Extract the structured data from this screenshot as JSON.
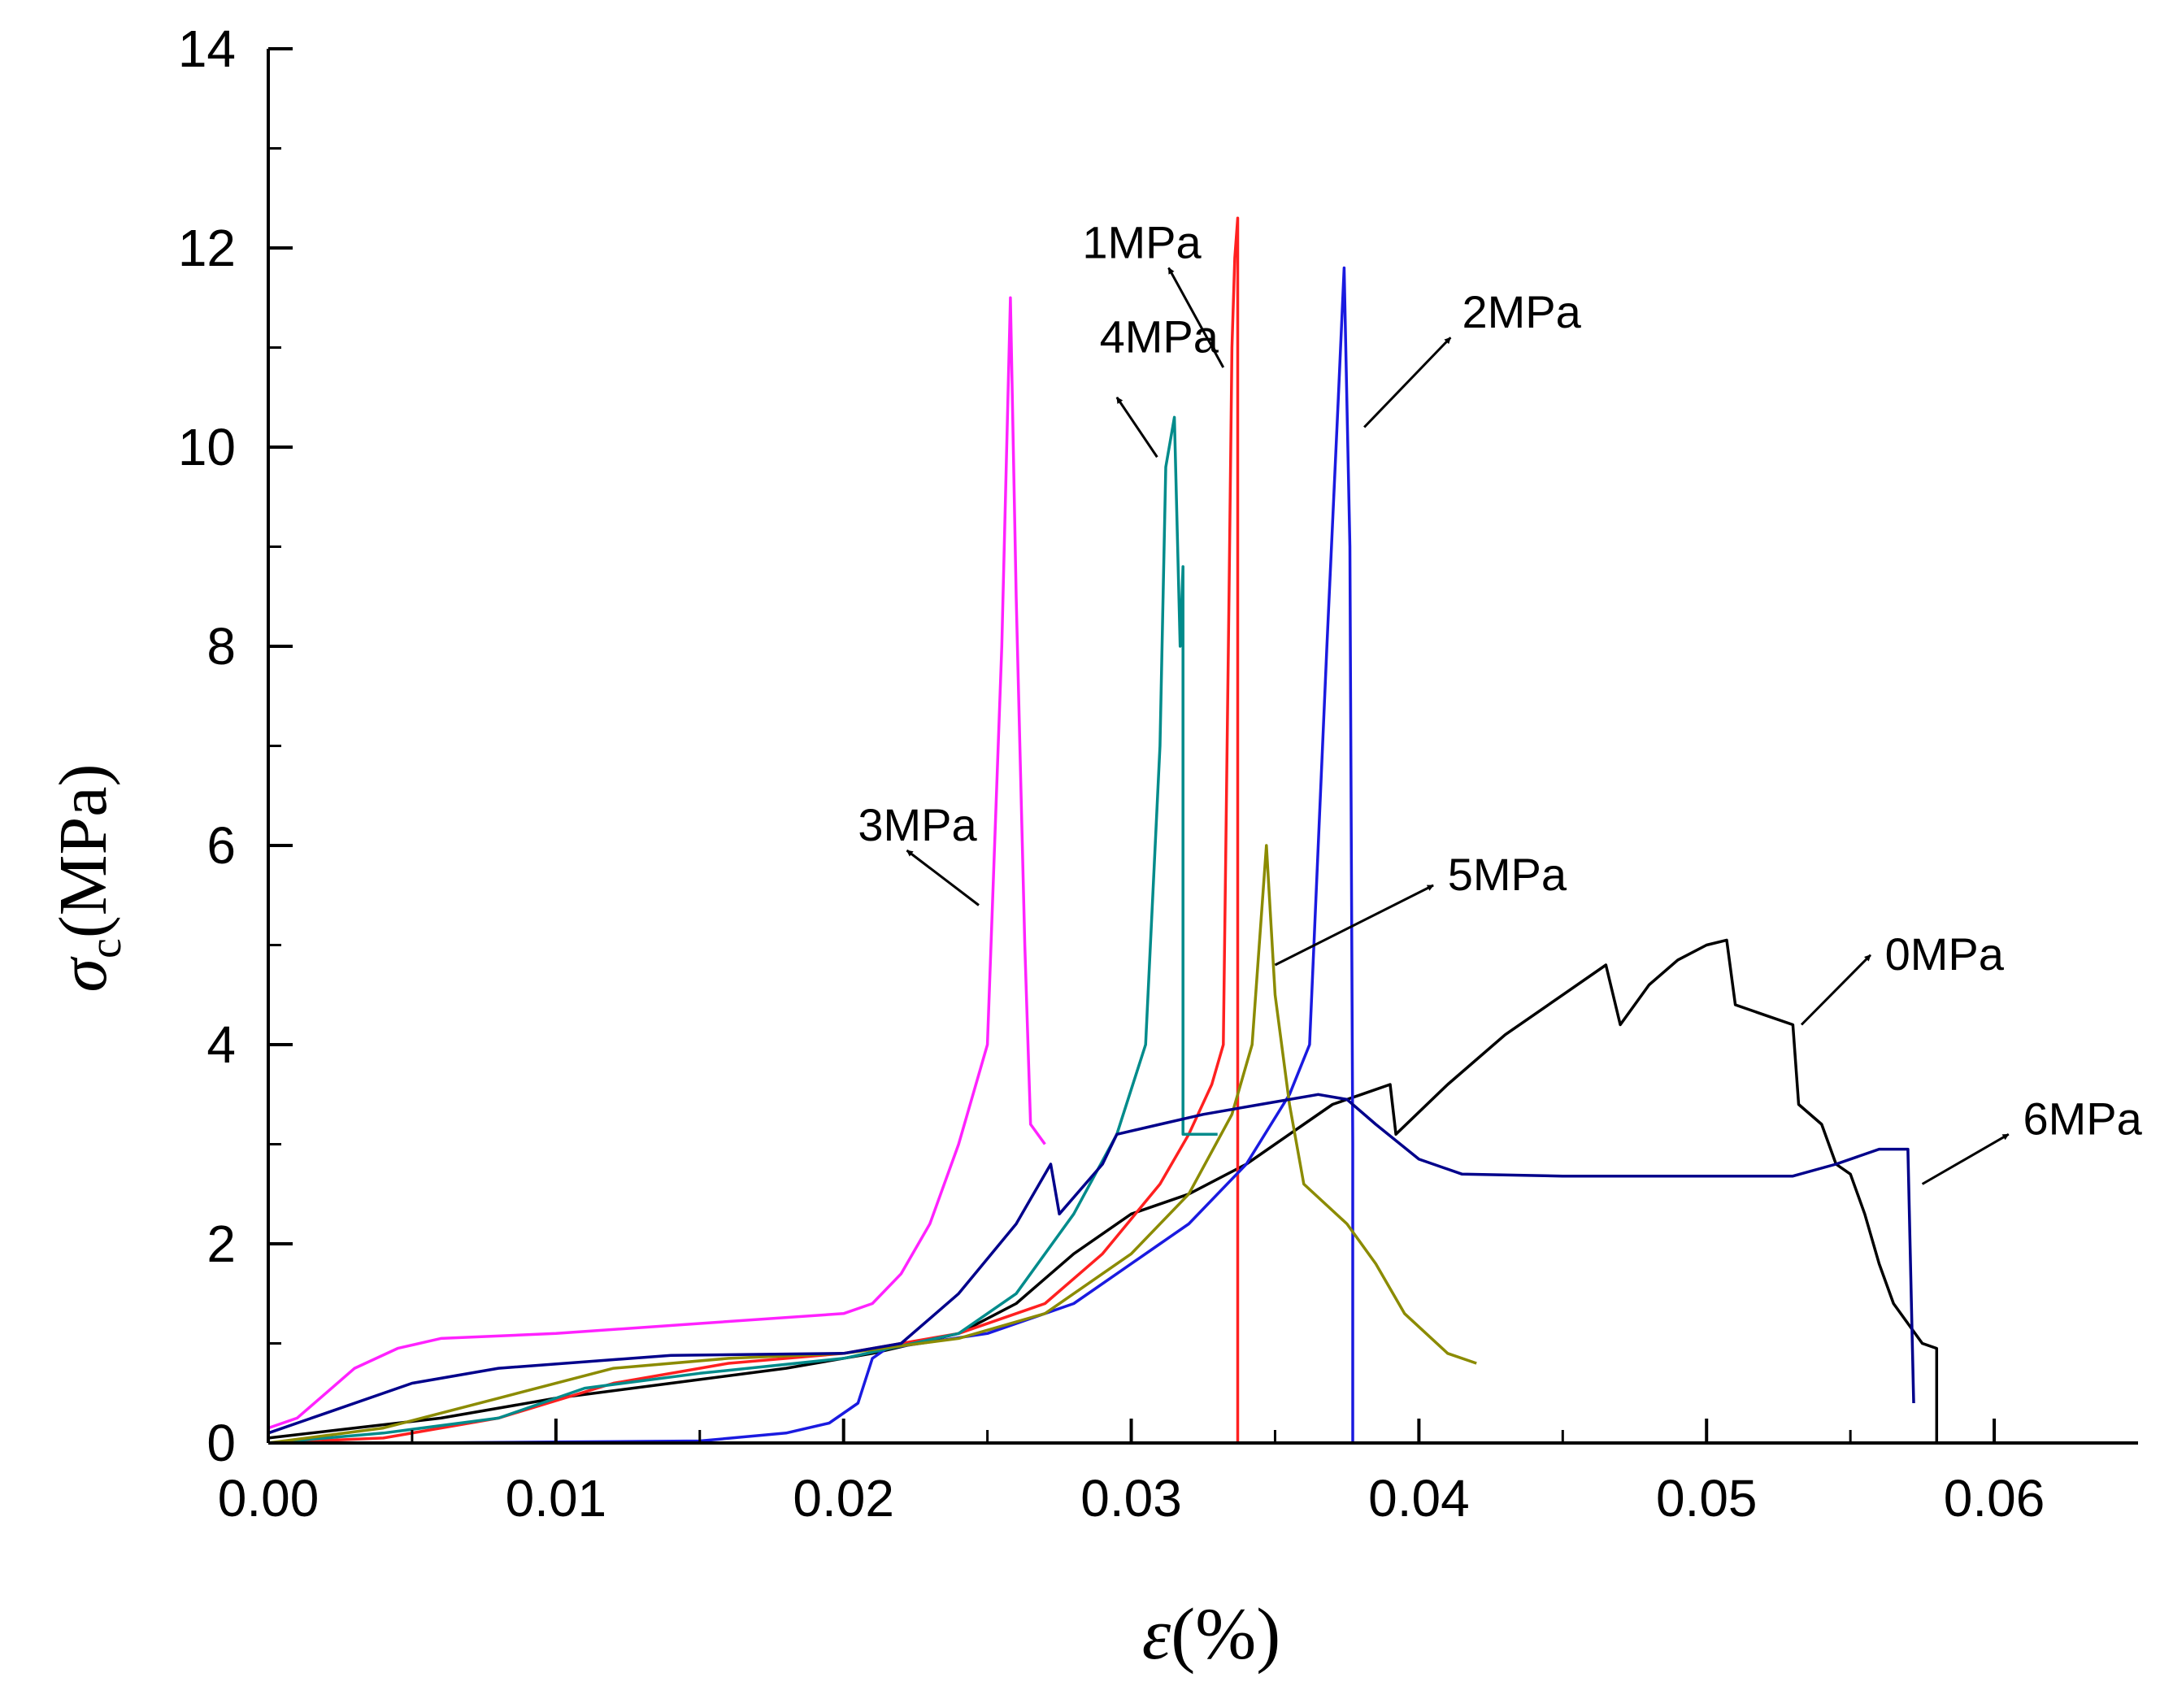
{
  "chart_data": {
    "type": "line",
    "title": "",
    "xlabel_symbol": "ε",
    "xlabel_unit": "(%)",
    "ylabel_symbol": "σ",
    "ylabel_subscript": "c",
    "ylabel_unit": "(MPa)",
    "xlim": [
      0,
      0.065
    ],
    "ylim": [
      0,
      14
    ],
    "x_ticks": [
      "0.00",
      "0.01",
      "0.02",
      "0.03",
      "0.04",
      "0.05",
      "0.06"
    ],
    "x_tick_values": [
      0,
      0.01,
      0.02,
      0.03,
      0.04,
      0.05,
      0.06
    ],
    "y_ticks": [
      "0",
      "2",
      "4",
      "6",
      "8",
      "10",
      "12",
      "14"
    ],
    "y_tick_values": [
      0,
      2,
      4,
      6,
      8,
      10,
      12,
      14
    ],
    "grid": false,
    "series": [
      {
        "name": "0MPa",
        "color": "#000000",
        "points": [
          [
            0,
            0.05
          ],
          [
            0.003,
            0.15
          ],
          [
            0.006,
            0.25
          ],
          [
            0.01,
            0.45
          ],
          [
            0.014,
            0.6
          ],
          [
            0.018,
            0.75
          ],
          [
            0.021,
            0.9
          ],
          [
            0.024,
            1.1
          ],
          [
            0.026,
            1.4
          ],
          [
            0.028,
            1.9
          ],
          [
            0.03,
            2.3
          ],
          [
            0.032,
            2.5
          ],
          [
            0.034,
            2.8
          ],
          [
            0.036,
            3.2
          ],
          [
            0.037,
            3.4
          ],
          [
            0.038,
            3.5
          ],
          [
            0.039,
            3.6
          ],
          [
            0.0392,
            3.1
          ],
          [
            0.041,
            3.6
          ],
          [
            0.043,
            4.1
          ],
          [
            0.045,
            4.5
          ],
          [
            0.0465,
            4.8
          ],
          [
            0.047,
            4.2
          ],
          [
            0.048,
            4.6
          ],
          [
            0.049,
            4.85
          ],
          [
            0.05,
            5.0
          ],
          [
            0.0507,
            5.05
          ],
          [
            0.051,
            4.4
          ],
          [
            0.052,
            4.3
          ],
          [
            0.053,
            4.2
          ],
          [
            0.0532,
            3.4
          ],
          [
            0.054,
            3.2
          ],
          [
            0.0545,
            2.8
          ],
          [
            0.055,
            2.7
          ],
          [
            0.0555,
            2.3
          ],
          [
            0.056,
            1.8
          ],
          [
            0.0565,
            1.4
          ],
          [
            0.057,
            1.2
          ],
          [
            0.0575,
            1.0
          ],
          [
            0.058,
            0.95
          ],
          [
            0.058,
            0
          ]
        ]
      },
      {
        "name": "1MPa",
        "color": "#ff2020",
        "points": [
          [
            0,
            0
          ],
          [
            0.004,
            0.05
          ],
          [
            0.008,
            0.25
          ],
          [
            0.012,
            0.6
          ],
          [
            0.016,
            0.8
          ],
          [
            0.02,
            0.9
          ],
          [
            0.024,
            1.1
          ],
          [
            0.027,
            1.4
          ],
          [
            0.029,
            1.9
          ],
          [
            0.031,
            2.6
          ],
          [
            0.032,
            3.1
          ],
          [
            0.0328,
            3.6
          ],
          [
            0.0332,
            4.0
          ],
          [
            0.0334,
            8.5
          ],
          [
            0.0335,
            11.0
          ],
          [
            0.0336,
            11.9
          ],
          [
            0.0337,
            12.3
          ],
          [
            0.0337,
            0
          ]
        ]
      },
      {
        "name": "2MPa",
        "color": "#1a1ae0",
        "points": [
          [
            0,
            0
          ],
          [
            0.005,
            0
          ],
          [
            0.01,
            0.01
          ],
          [
            0.015,
            0.02
          ],
          [
            0.018,
            0.1
          ],
          [
            0.0195,
            0.2
          ],
          [
            0.0205,
            0.4
          ],
          [
            0.021,
            0.85
          ],
          [
            0.0215,
            0.95
          ],
          [
            0.025,
            1.1
          ],
          [
            0.028,
            1.4
          ],
          [
            0.0295,
            1.7
          ],
          [
            0.031,
            2.0
          ],
          [
            0.032,
            2.2
          ],
          [
            0.034,
            2.8
          ],
          [
            0.0355,
            3.5
          ],
          [
            0.0362,
            4.0
          ],
          [
            0.0368,
            8.0
          ],
          [
            0.0372,
            10.5
          ],
          [
            0.0374,
            11.8
          ],
          [
            0.0376,
            9.0
          ],
          [
            0.0377,
            3.0
          ],
          [
            0.0377,
            0
          ]
        ]
      },
      {
        "name": "3MPa",
        "color": "#ff22ff",
        "points": [
          [
            0,
            0.15
          ],
          [
            0.001,
            0.25
          ],
          [
            0.002,
            0.5
          ],
          [
            0.003,
            0.75
          ],
          [
            0.0045,
            0.95
          ],
          [
            0.006,
            1.05
          ],
          [
            0.01,
            1.1
          ],
          [
            0.015,
            1.2
          ],
          [
            0.02,
            1.3
          ],
          [
            0.021,
            1.4
          ],
          [
            0.022,
            1.7
          ],
          [
            0.023,
            2.2
          ],
          [
            0.024,
            3.0
          ],
          [
            0.025,
            4.0
          ],
          [
            0.0255,
            8.0
          ],
          [
            0.0258,
            11.5
          ],
          [
            0.026,
            8.5
          ],
          [
            0.0263,
            5.0
          ],
          [
            0.0265,
            3.2
          ],
          [
            0.027,
            3.0
          ]
        ]
      },
      {
        "name": "4MPa",
        "color": "#008b8b",
        "points": [
          [
            0,
            0
          ],
          [
            0.004,
            0.1
          ],
          [
            0.008,
            0.25
          ],
          [
            0.011,
            0.55
          ],
          [
            0.015,
            0.7
          ],
          [
            0.02,
            0.85
          ],
          [
            0.024,
            1.1
          ],
          [
            0.026,
            1.5
          ],
          [
            0.028,
            2.3
          ],
          [
            0.0295,
            3.1
          ],
          [
            0.0305,
            4.0
          ],
          [
            0.031,
            7.0
          ],
          [
            0.0312,
            9.8
          ],
          [
            0.0315,
            10.3
          ],
          [
            0.0317,
            8.0
          ],
          [
            0.0318,
            8.8
          ],
          [
            0.0318,
            3.1
          ],
          [
            0.033,
            3.1
          ]
        ]
      },
      {
        "name": "5MPa",
        "color": "#8b8b00",
        "points": [
          [
            0,
            0
          ],
          [
            0.004,
            0.15
          ],
          [
            0.008,
            0.45
          ],
          [
            0.012,
            0.75
          ],
          [
            0.016,
            0.85
          ],
          [
            0.02,
            0.9
          ],
          [
            0.024,
            1.05
          ],
          [
            0.027,
            1.3
          ],
          [
            0.03,
            1.9
          ],
          [
            0.032,
            2.5
          ],
          [
            0.0335,
            3.3
          ],
          [
            0.0342,
            4.0
          ],
          [
            0.0347,
            6.0
          ],
          [
            0.035,
            4.5
          ],
          [
            0.0355,
            3.4
          ],
          [
            0.036,
            2.6
          ],
          [
            0.0375,
            2.2
          ],
          [
            0.0385,
            1.8
          ],
          [
            0.0395,
            1.3
          ],
          [
            0.041,
            0.9
          ],
          [
            0.042,
            0.8
          ]
        ]
      },
      {
        "name": "6MPa",
        "color": "#00008b",
        "points": [
          [
            0,
            0.1
          ],
          [
            0.002,
            0.3
          ],
          [
            0.005,
            0.6
          ],
          [
            0.008,
            0.75
          ],
          [
            0.014,
            0.88
          ],
          [
            0.02,
            0.9
          ],
          [
            0.022,
            1.0
          ],
          [
            0.024,
            1.5
          ],
          [
            0.026,
            2.2
          ],
          [
            0.0272,
            2.8
          ],
          [
            0.0275,
            2.3
          ],
          [
            0.029,
            2.8
          ],
          [
            0.0295,
            3.1
          ],
          [
            0.031,
            3.2
          ],
          [
            0.0325,
            3.3
          ],
          [
            0.0345,
            3.4
          ],
          [
            0.0365,
            3.5
          ],
          [
            0.0375,
            3.45
          ],
          [
            0.0385,
            3.2
          ],
          [
            0.04,
            2.85
          ],
          [
            0.0415,
            2.7
          ],
          [
            0.045,
            2.68
          ],
          [
            0.05,
            2.68
          ],
          [
            0.053,
            2.68
          ],
          [
            0.0545,
            2.8
          ],
          [
            0.056,
            2.95
          ],
          [
            0.057,
            2.95
          ],
          [
            0.0572,
            0.4
          ]
        ]
      }
    ],
    "annotations": [
      {
        "text": "3MPa",
        "series": "3MPa",
        "tail": [
          0.0247,
          5.4
        ],
        "head": [
          0.0222,
          5.95
        ],
        "label_at": [
          0.0205,
          6.05
        ]
      },
      {
        "text": "4MPa",
        "series": "4MPa",
        "tail": [
          0.0309,
          9.9
        ],
        "head": [
          0.0295,
          10.5
        ],
        "label_at": [
          0.0289,
          10.95
        ]
      },
      {
        "text": "1MPa",
        "series": "1MPa",
        "tail": [
          0.0332,
          10.8
        ],
        "head": [
          0.0313,
          11.8
        ],
        "label_at": [
          0.0283,
          11.9
        ]
      },
      {
        "text": "2MPa",
        "series": "2MPa",
        "tail": [
          0.0381,
          10.2
        ],
        "head": [
          0.0411,
          11.1
        ],
        "label_at": [
          0.0415,
          11.2
        ]
      },
      {
        "text": "5MPa",
        "series": "5MPa",
        "tail": [
          0.035,
          4.8
        ],
        "head": [
          0.0405,
          5.6
        ],
        "label_at": [
          0.041,
          5.55
        ]
      },
      {
        "text": "0MPa",
        "series": "0MPa",
        "tail": [
          0.0533,
          4.2
        ],
        "head": [
          0.0557,
          4.9
        ],
        "label_at": [
          0.0562,
          4.75
        ]
      },
      {
        "text": "6MPa",
        "series": "6MPa",
        "tail": [
          0.0575,
          2.6
        ],
        "head": [
          0.0605,
          3.1
        ],
        "label_at": [
          0.061,
          3.1
        ]
      }
    ]
  }
}
